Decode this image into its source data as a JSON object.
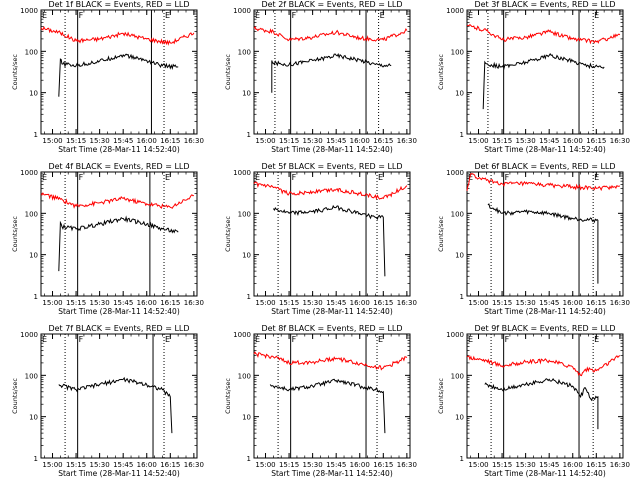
{
  "chart_data": [
    {
      "type": "line",
      "title": "Det 1f BLACK = Events, RED = LLD",
      "xlabel": "Start Time (28-Mar-11 14:52:40)",
      "ylabel": "Counts/sec",
      "x_ticks": [
        "15:00",
        "15:15",
        "15:30",
        "15:45",
        "16:00",
        "16:15",
        "16:30"
      ],
      "y_ticks": [
        "1",
        "10",
        "100",
        "1000"
      ],
      "xlim": [
        "14:52:40",
        "16:32:00"
      ],
      "ylim": [
        1,
        1000
      ],
      "yscale": "log",
      "markers": {
        "dotted": [
          "15:08",
          "16:11"
        ],
        "solid": [
          "15:16",
          "16:03"
        ],
        "labels": [
          {
            "text": "E",
            "at": "14:52:40"
          },
          {
            "text": "F",
            "at": "15:16"
          },
          {
            "text": "E",
            "at": "16:11"
          }
        ]
      },
      "series": [
        {
          "color": "#ff0000",
          "x": [
            "14:52:40",
            "15:05",
            "15:15",
            "15:30",
            "15:45",
            "16:00",
            "16:15",
            "16:30"
          ],
          "values": [
            370,
            280,
            180,
            200,
            270,
            200,
            160,
            280
          ]
        },
        {
          "color": "#000000",
          "x": [
            "15:04",
            "15:05",
            "15:06",
            "15:15",
            "15:30",
            "15:45",
            "16:00",
            "16:10",
            "16:20"
          ],
          "values": [
            8,
            65,
            50,
            45,
            58,
            82,
            60,
            45,
            42
          ]
        }
      ]
    },
    {
      "type": "line",
      "title": "Det 2f BLACK = Events, RED = LLD",
      "xlabel": "Start Time (28-Mar-11 14:52:40)",
      "ylabel": "Counts/sec",
      "x_ticks": [
        "15:00",
        "15:15",
        "15:30",
        "15:45",
        "16:00",
        "16:15",
        "16:30"
      ],
      "y_ticks": [
        "1",
        "10",
        "100",
        "1000"
      ],
      "xlim": [
        "14:52:40",
        "16:32:00"
      ],
      "ylim": [
        1,
        1000
      ],
      "yscale": "log",
      "markers": {
        "dotted": [
          "15:06",
          "16:12"
        ],
        "solid": [
          "15:16",
          "16:04"
        ],
        "labels": [
          {
            "text": "E",
            "at": "14:52:40"
          },
          {
            "text": "F",
            "at": "15:16"
          },
          {
            "text": "E",
            "at": "16:12"
          }
        ]
      },
      "series": [
        {
          "color": "#ff0000",
          "x": [
            "14:52:40",
            "15:05",
            "15:15",
            "15:30",
            "15:45",
            "16:00",
            "16:15",
            "16:30"
          ],
          "values": [
            360,
            300,
            190,
            220,
            290,
            210,
            190,
            320
          ]
        },
        {
          "color": "#000000",
          "x": [
            "15:04",
            "15:04",
            "15:05",
            "15:15",
            "15:30",
            "15:45",
            "16:00",
            "16:10",
            "16:20"
          ],
          "values": [
            10,
            60,
            52,
            48,
            60,
            80,
            62,
            48,
            45
          ]
        }
      ]
    },
    {
      "type": "line",
      "title": "Det 3f BLACK = Events, RED = LLD",
      "xlabel": "Start Time (28-Mar-11 14:52:40)",
      "ylabel": "Counts/sec",
      "x_ticks": [
        "15:00",
        "15:15",
        "15:30",
        "15:45",
        "16:00",
        "16:15",
        "16:30"
      ],
      "y_ticks": [
        "1",
        "10",
        "100",
        "1000"
      ],
      "xlim": [
        "14:52:40",
        "16:32:00"
      ],
      "ylim": [
        1,
        1000
      ],
      "yscale": "log",
      "markers": {
        "dotted": [
          "15:06",
          "16:13"
        ],
        "solid": [
          "15:16",
          "16:04"
        ],
        "labels": [
          {
            "text": "E",
            "at": "14:52:40"
          },
          {
            "text": "F",
            "at": "15:16"
          },
          {
            "text": "E",
            "at": "16:13"
          }
        ]
      },
      "series": [
        {
          "color": "#ff0000",
          "x": [
            "14:52:40",
            "15:05",
            "15:15",
            "15:30",
            "15:45",
            "16:00",
            "16:15",
            "16:30"
          ],
          "values": [
            420,
            320,
            190,
            220,
            300,
            200,
            170,
            250
          ]
        },
        {
          "color": "#000000",
          "x": [
            "15:03",
            "15:04",
            "15:05",
            "15:15",
            "15:30",
            "15:45",
            "16:00",
            "16:10",
            "16:20"
          ],
          "values": [
            4,
            55,
            50,
            42,
            55,
            80,
            58,
            45,
            42
          ]
        }
      ]
    },
    {
      "type": "line",
      "title": "Det 4f BLACK = Events, RED = LLD",
      "xlabel": "Start Time (28-Mar-11 14:52:40)",
      "ylabel": "Counts/sec",
      "x_ticks": [
        "15:00",
        "15:15",
        "15:30",
        "15:45",
        "16:00",
        "16:15",
        "16:30"
      ],
      "y_ticks": [
        "1",
        "10",
        "100",
        "1000"
      ],
      "xlim": [
        "14:52:40",
        "16:32:00"
      ],
      "ylim": [
        1,
        1000
      ],
      "yscale": "log",
      "markers": {
        "dotted": [
          "15:08",
          "16:11"
        ],
        "solid": [
          "15:16",
          "16:02"
        ],
        "labels": [
          {
            "text": "E",
            "at": "14:52:40"
          },
          {
            "text": "F",
            "at": "15:16"
          },
          {
            "text": "E",
            "at": "16:11"
          }
        ]
      },
      "series": [
        {
          "color": "#ff0000",
          "x": [
            "14:52:40",
            "15:05",
            "15:15",
            "15:30",
            "15:45",
            "16:00",
            "16:15",
            "16:30"
          ],
          "values": [
            300,
            220,
            150,
            180,
            230,
            170,
            140,
            270
          ]
        },
        {
          "color": "#000000",
          "x": [
            "15:04",
            "15:05",
            "15:06",
            "15:15",
            "15:30",
            "15:45",
            "16:00",
            "16:10",
            "16:20"
          ],
          "values": [
            4,
            60,
            48,
            42,
            55,
            75,
            55,
            42,
            35
          ]
        }
      ]
    },
    {
      "type": "line",
      "title": "Det 5f BLACK = Events, RED = LLD",
      "xlabel": "Start Time (28-Mar-11 14:52:40)",
      "ylabel": "Counts/sec",
      "x_ticks": [
        "15:00",
        "15:15",
        "15:30",
        "15:45",
        "16:00",
        "16:15",
        "16:30"
      ],
      "y_ticks": [
        "1",
        "10",
        "100",
        "1000"
      ],
      "xlim": [
        "14:52:40",
        "16:32:00"
      ],
      "ylim": [
        1,
        1000
      ],
      "yscale": "log",
      "markers": {
        "dotted": [
          "15:08",
          "16:11"
        ],
        "solid": [
          "15:16",
          "16:04"
        ],
        "labels": [
          {
            "text": "E",
            "at": "14:52:40"
          },
          {
            "text": "F",
            "at": "15:16"
          },
          {
            "text": "E",
            "at": "16:11"
          }
        ]
      },
      "series": [
        {
          "color": "#ff0000",
          "x": [
            "14:52:40",
            "15:05",
            "15:15",
            "15:30",
            "15:45",
            "16:00",
            "16:15",
            "16:30"
          ],
          "values": [
            520,
            420,
            300,
            330,
            380,
            300,
            230,
            470
          ]
        },
        {
          "color": "#000000",
          "x": [
            "15:05",
            "15:15",
            "15:30",
            "15:45",
            "16:00",
            "16:10",
            "16:15",
            "16:16"
          ],
          "values": [
            130,
            100,
            110,
            140,
            100,
            80,
            80,
            3
          ]
        }
      ]
    },
    {
      "type": "line",
      "title": "Det 6f BLACK = Events, RED = LLD",
      "xlabel": "Start Time (28-Mar-11 14:52:40)",
      "ylabel": "Counts/sec",
      "x_ticks": [
        "15:00",
        "15:15",
        "15:30",
        "15:45",
        "16:00",
        "16:15",
        "16:30"
      ],
      "y_ticks": [
        "1",
        "10",
        "100",
        "1000"
      ],
      "xlim": [
        "14:52:40",
        "16:32:00"
      ],
      "ylim": [
        1,
        1000
      ],
      "yscale": "log",
      "markers": {
        "dotted": [
          "15:08",
          "16:13"
        ],
        "solid": [
          "15:16",
          "16:04"
        ],
        "labels": [
          {
            "text": "E",
            "at": "14:52:40"
          },
          {
            "text": "F",
            "at": "15:16"
          },
          {
            "text": "E",
            "at": "16:13"
          }
        ]
      },
      "series": [
        {
          "color": "#ff0000",
          "x": [
            "14:52:40",
            "14:55",
            "15:00",
            "15:15",
            "15:30",
            "15:45",
            "16:00",
            "16:15",
            "16:30"
          ],
          "values": [
            350,
            900,
            700,
            520,
            520,
            480,
            440,
            400,
            460
          ]
        },
        {
          "color": "#000000",
          "x": [
            "15:06",
            "15:15",
            "15:30",
            "15:45",
            "16:00",
            "16:15",
            "16:16",
            "16:16"
          ],
          "values": [
            160,
            100,
            110,
            100,
            75,
            68,
            68,
            2
          ]
        }
      ]
    },
    {
      "type": "line",
      "title": "Det 7f BLACK = Events, RED = LLD",
      "xlabel": "Start Time (28-Mar-11 14:52:40)",
      "ylabel": "Counts/sec",
      "x_ticks": [
        "15:00",
        "15:15",
        "15:30",
        "15:45",
        "16:00",
        "16:15",
        "16:30"
      ],
      "y_ticks": [
        "1",
        "10",
        "100",
        "1000"
      ],
      "xlim": [
        "14:52:40",
        "16:32:00"
      ],
      "ylim": [
        1,
        1000
      ],
      "yscale": "log",
      "markers": {
        "dotted": [
          "15:08",
          "16:11"
        ],
        "solid": [
          "15:16",
          "16:04"
        ],
        "labels": [
          {
            "text": "E",
            "at": "14:52:40"
          },
          {
            "text": "F",
            "at": "15:16"
          },
          {
            "text": "E",
            "at": "16:11"
          }
        ]
      },
      "series": [
        {
          "color": "#000000",
          "x": [
            "15:04",
            "15:15",
            "15:30",
            "15:45",
            "16:00",
            "16:10",
            "16:15",
            "16:16"
          ],
          "values": [
            60,
            45,
            60,
            80,
            60,
            45,
            30,
            4
          ]
        }
      ]
    },
    {
      "type": "line",
      "title": "Det 8f BLACK = Events, RED = LLD",
      "xlabel": "Start Time (28-Mar-11 14:52:40)",
      "ylabel": "Counts/sec",
      "x_ticks": [
        "15:00",
        "15:15",
        "15:30",
        "15:45",
        "16:00",
        "16:15",
        "16:30"
      ],
      "y_ticks": [
        "1",
        "10",
        "100",
        "1000"
      ],
      "xlim": [
        "14:52:40",
        "16:32:00"
      ],
      "ylim": [
        1,
        1000
      ],
      "yscale": "log",
      "markers": {
        "dotted": [
          "15:08",
          "16:11"
        ],
        "solid": [
          "15:16",
          "16:04"
        ],
        "labels": [
          {
            "text": "E",
            "at": "14:52:40"
          },
          {
            "text": "F",
            "at": "15:16"
          },
          {
            "text": "E",
            "at": "16:11"
          }
        ]
      },
      "series": [
        {
          "color": "#ff0000",
          "x": [
            "14:52:40",
            "15:05",
            "15:15",
            "15:30",
            "15:45",
            "16:00",
            "16:15",
            "16:30"
          ],
          "values": [
            330,
            280,
            200,
            210,
            260,
            190,
            150,
            270
          ]
        },
        {
          "color": "#000000",
          "x": [
            "15:03",
            "15:05",
            "15:15",
            "15:30",
            "15:45",
            "16:00",
            "16:10",
            "16:15",
            "16:16"
          ],
          "values": [
            60,
            55,
            45,
            55,
            75,
            55,
            45,
            40,
            4
          ]
        }
      ]
    },
    {
      "type": "line",
      "title": "Det 9f BLACK = Events, RED = LLD",
      "xlabel": "Start Time (28-Mar-11 14:52:40)",
      "ylabel": "Counts/sec",
      "x_ticks": [
        "15:00",
        "15:15",
        "15:30",
        "15:45",
        "16:00",
        "16:15",
        "16:30"
      ],
      "y_ticks": [
        "1",
        "10",
        "100",
        "1000"
      ],
      "xlim": [
        "14:52:40",
        "16:32:00"
      ],
      "ylim": [
        1,
        1000
      ],
      "yscale": "log",
      "markers": {
        "dotted": [
          "15:08",
          "16:13"
        ],
        "solid": [
          "15:16",
          "16:04"
        ],
        "labels": [
          {
            "text": "E",
            "at": "14:52:40"
          },
          {
            "text": "F",
            "at": "15:16"
          },
          {
            "text": "E",
            "at": "16:13"
          }
        ]
      },
      "series": [
        {
          "color": "#ff0000",
          "x": [
            "14:52:40",
            "15:05",
            "15:15",
            "15:30",
            "15:45",
            "16:00",
            "16:05",
            "16:08",
            "16:15",
            "16:30"
          ],
          "values": [
            280,
            230,
            170,
            210,
            230,
            160,
            100,
            140,
            130,
            300
          ]
        },
        {
          "color": "#000000",
          "x": [
            "15:04",
            "15:15",
            "15:30",
            "15:45",
            "16:00",
            "16:05",
            "16:08",
            "16:12",
            "16:16",
            "16:16"
          ],
          "values": [
            60,
            45,
            60,
            80,
            55,
            30,
            50,
            25,
            30,
            5
          ]
        }
      ]
    }
  ]
}
